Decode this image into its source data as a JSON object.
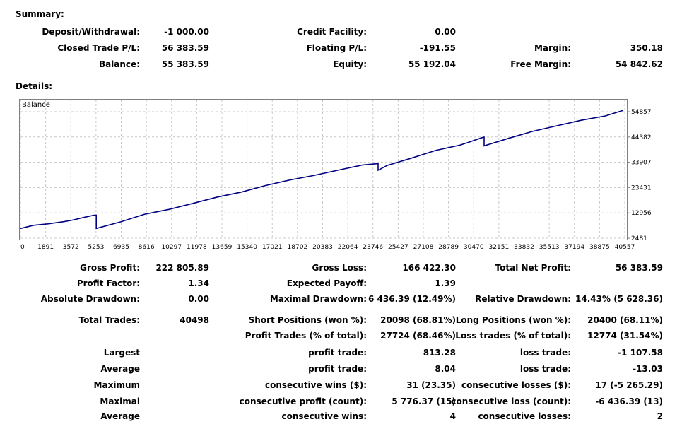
{
  "summary": {
    "title": "Summary:",
    "rows": [
      [
        {
          "label": "Deposit/Withdrawal:",
          "value": "-1 000.00"
        },
        {
          "label": "Credit Facility:",
          "value": "0.00"
        },
        {
          "label": "",
          "value": ""
        }
      ],
      [
        {
          "label": "Closed Trade P/L:",
          "value": "56 383.59"
        },
        {
          "label": "Floating P/L:",
          "value": "-191.55"
        },
        {
          "label": "Margin:",
          "value": "350.18"
        }
      ],
      [
        {
          "label": "Balance:",
          "value": "55 383.59"
        },
        {
          "label": "Equity:",
          "value": "55 192.04"
        },
        {
          "label": "Free Margin:",
          "value": "54 842.62"
        }
      ]
    ]
  },
  "details": {
    "title": "Details:"
  },
  "chart_data": {
    "type": "line",
    "title": "",
    "legend": "Balance",
    "xlabel": "",
    "ylabel": "",
    "x_ticks": [
      "0",
      "1891",
      "3572",
      "5253",
      "6935",
      "8616",
      "10297",
      "11978",
      "13659",
      "15340",
      "17021",
      "18702",
      "20383",
      "22064",
      "23746",
      "25427",
      "27108",
      "28789",
      "30470",
      "32151",
      "33832",
      "35513",
      "37194",
      "38875",
      "40557"
    ],
    "y_ticks": [
      "2481",
      "12956",
      "23431",
      "33907",
      "44382",
      "54857"
    ],
    "ylim": [
      2481,
      54857
    ],
    "xlim": [
      0,
      42000
    ],
    "color": "#000080",
    "series": [
      {
        "x": [
          0,
          900,
          1891,
          3000,
          3572,
          4500,
          5100,
          5253,
          6935,
          8616,
          10297,
          11978,
          13659,
          15340,
          17021,
          18702,
          20383,
          22064,
          23746,
          24700,
          24800,
          25427,
          27108,
          28789,
          30470,
          31000,
          32100,
          32151,
          33832,
          35513,
          37194,
          38875,
          40557,
          41800
        ],
        "y": [
          6500,
          7800,
          8400,
          9300,
          9900,
          11200,
          12000,
          6500,
          9200,
          12400,
          14400,
          16900,
          19500,
          21600,
          24300,
          26600,
          28500,
          30700,
          32800,
          33300,
          30600,
          32600,
          35600,
          38800,
          41000,
          42000,
          44300,
          40700,
          43800,
          46700,
          49000,
          51300,
          53100,
          55400
        ]
      }
    ]
  },
  "stats": {
    "rows": [
      [
        {
          "label": "Gross Profit:",
          "value": "222 805.89"
        },
        {
          "label": "Gross Loss:",
          "value": "166 422.30"
        },
        {
          "label": "Total Net Profit:",
          "value": "56 383.59"
        }
      ],
      [
        {
          "label": "Profit Factor:",
          "value": "1.34"
        },
        {
          "label": "Expected Payoff:",
          "value": "1.39"
        },
        {
          "label": "",
          "value": ""
        }
      ],
      [
        {
          "label": "Absolute Drawdown:",
          "value": "0.00"
        },
        {
          "label": "Maximal Drawdown:",
          "value": "6 436.39 (12.49%)"
        },
        {
          "label": "Relative Drawdown:",
          "value": "14.43% (5 628.36)"
        }
      ],
      [
        {
          "label": "Total Trades:",
          "value": "40498"
        },
        {
          "label": "Short Positions (won %):",
          "value": "20098 (68.81%)"
        },
        {
          "label": "Long Positions (won %):",
          "value": "20400 (68.11%)"
        }
      ],
      [
        {
          "label": "",
          "value": ""
        },
        {
          "label": "Profit Trades (% of total):",
          "value": "27724 (68.46%)"
        },
        {
          "label": "Loss trades (% of total):",
          "value": "12774 (31.54%)"
        }
      ],
      [
        {
          "label": "Largest",
          "value": ""
        },
        {
          "label": "profit trade:",
          "value": "813.28"
        },
        {
          "label": "loss trade:",
          "value": "-1 107.58"
        }
      ],
      [
        {
          "label": "Average",
          "value": ""
        },
        {
          "label": "profit trade:",
          "value": "8.04"
        },
        {
          "label": "loss trade:",
          "value": "-13.03"
        }
      ],
      [
        {
          "label": "Maximum",
          "value": ""
        },
        {
          "label": "consecutive wins ($):",
          "value": "31 (23.35)"
        },
        {
          "label": "consecutive losses ($):",
          "value": "17 (-5 265.29)"
        }
      ],
      [
        {
          "label": "Maximal",
          "value": ""
        },
        {
          "label": "consecutive profit (count):",
          "value": "5 776.37 (15)"
        },
        {
          "label": "consecutive loss (count):",
          "value": "-6 436.39 (13)"
        }
      ],
      [
        {
          "label": "Average",
          "value": ""
        },
        {
          "label": "consecutive wins:",
          "value": "4"
        },
        {
          "label": "consecutive losses:",
          "value": "2"
        }
      ]
    ]
  }
}
